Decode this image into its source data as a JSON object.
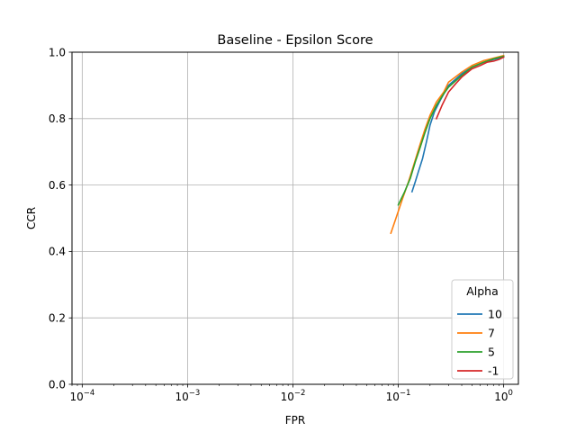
{
  "chart_data": {
    "type": "line",
    "title": "Baseline - Epsilon Score",
    "xlabel": "FPR",
    "ylabel": "CCR",
    "x_scale": "log",
    "xlim": [
      8e-05,
      1.38
    ],
    "ylim": [
      0,
      1
    ],
    "grid": true,
    "x_ticks": [
      {
        "value": 0.0001,
        "base": "10",
        "exp": "−4"
      },
      {
        "value": 0.001,
        "base": "10",
        "exp": "−3"
      },
      {
        "value": 0.01,
        "base": "10",
        "exp": "−2"
      },
      {
        "value": 0.1,
        "base": "10",
        "exp": "−1"
      },
      {
        "value": 1,
        "base": "10",
        "exp": "0"
      }
    ],
    "y_ticks": [
      {
        "value": 0.0,
        "label": "0.0"
      },
      {
        "value": 0.2,
        "label": "0.2"
      },
      {
        "value": 0.4,
        "label": "0.4"
      },
      {
        "value": 0.6,
        "label": "0.6"
      },
      {
        "value": 0.8,
        "label": "0.8"
      },
      {
        "value": 1.0,
        "label": "1.0"
      }
    ],
    "legend": {
      "title": "Alpha",
      "position": "lower-right"
    },
    "series": [
      {
        "name": "10",
        "color": "#1f77b4",
        "points": [
          [
            0.135,
            0.58
          ],
          [
            0.145,
            0.61
          ],
          [
            0.155,
            0.64
          ],
          [
            0.17,
            0.68
          ],
          [
            0.185,
            0.73
          ],
          [
            0.2,
            0.78
          ],
          [
            0.22,
            0.82
          ],
          [
            0.25,
            0.855
          ],
          [
            0.3,
            0.9
          ],
          [
            0.4,
            0.935
          ],
          [
            0.5,
            0.955
          ],
          [
            0.65,
            0.97
          ],
          [
            0.8,
            0.978
          ],
          [
            1.0,
            0.985
          ]
        ]
      },
      {
        "name": "7",
        "color": "#ff7f0e",
        "points": [
          [
            0.085,
            0.455
          ],
          [
            0.095,
            0.5
          ],
          [
            0.11,
            0.56
          ],
          [
            0.125,
            0.61
          ],
          [
            0.14,
            0.66
          ],
          [
            0.16,
            0.72
          ],
          [
            0.18,
            0.77
          ],
          [
            0.2,
            0.81
          ],
          [
            0.23,
            0.85
          ],
          [
            0.27,
            0.88
          ],
          [
            0.3,
            0.91
          ],
          [
            0.4,
            0.94
          ],
          [
            0.5,
            0.96
          ],
          [
            0.65,
            0.975
          ],
          [
            0.8,
            0.982
          ],
          [
            1.0,
            0.99
          ]
        ]
      },
      {
        "name": "5",
        "color": "#2ca02c",
        "points": [
          [
            0.1,
            0.54
          ],
          [
            0.115,
            0.58
          ],
          [
            0.13,
            0.62
          ],
          [
            0.145,
            0.67
          ],
          [
            0.16,
            0.71
          ],
          [
            0.18,
            0.76
          ],
          [
            0.2,
            0.8
          ],
          [
            0.23,
            0.84
          ],
          [
            0.27,
            0.875
          ],
          [
            0.3,
            0.895
          ],
          [
            0.4,
            0.93
          ],
          [
            0.5,
            0.955
          ],
          [
            0.65,
            0.97
          ],
          [
            0.8,
            0.98
          ],
          [
            1.0,
            0.988
          ]
        ]
      },
      {
        "name": "-1",
        "color": "#d62728",
        "points": [
          [
            0.23,
            0.8
          ],
          [
            0.26,
            0.84
          ],
          [
            0.3,
            0.88
          ],
          [
            0.35,
            0.905
          ],
          [
            0.4,
            0.925
          ],
          [
            0.5,
            0.95
          ],
          [
            0.6,
            0.96
          ],
          [
            0.7,
            0.97
          ],
          [
            0.8,
            0.973
          ],
          [
            0.9,
            0.978
          ],
          [
            1.0,
            0.985
          ]
        ]
      }
    ]
  }
}
